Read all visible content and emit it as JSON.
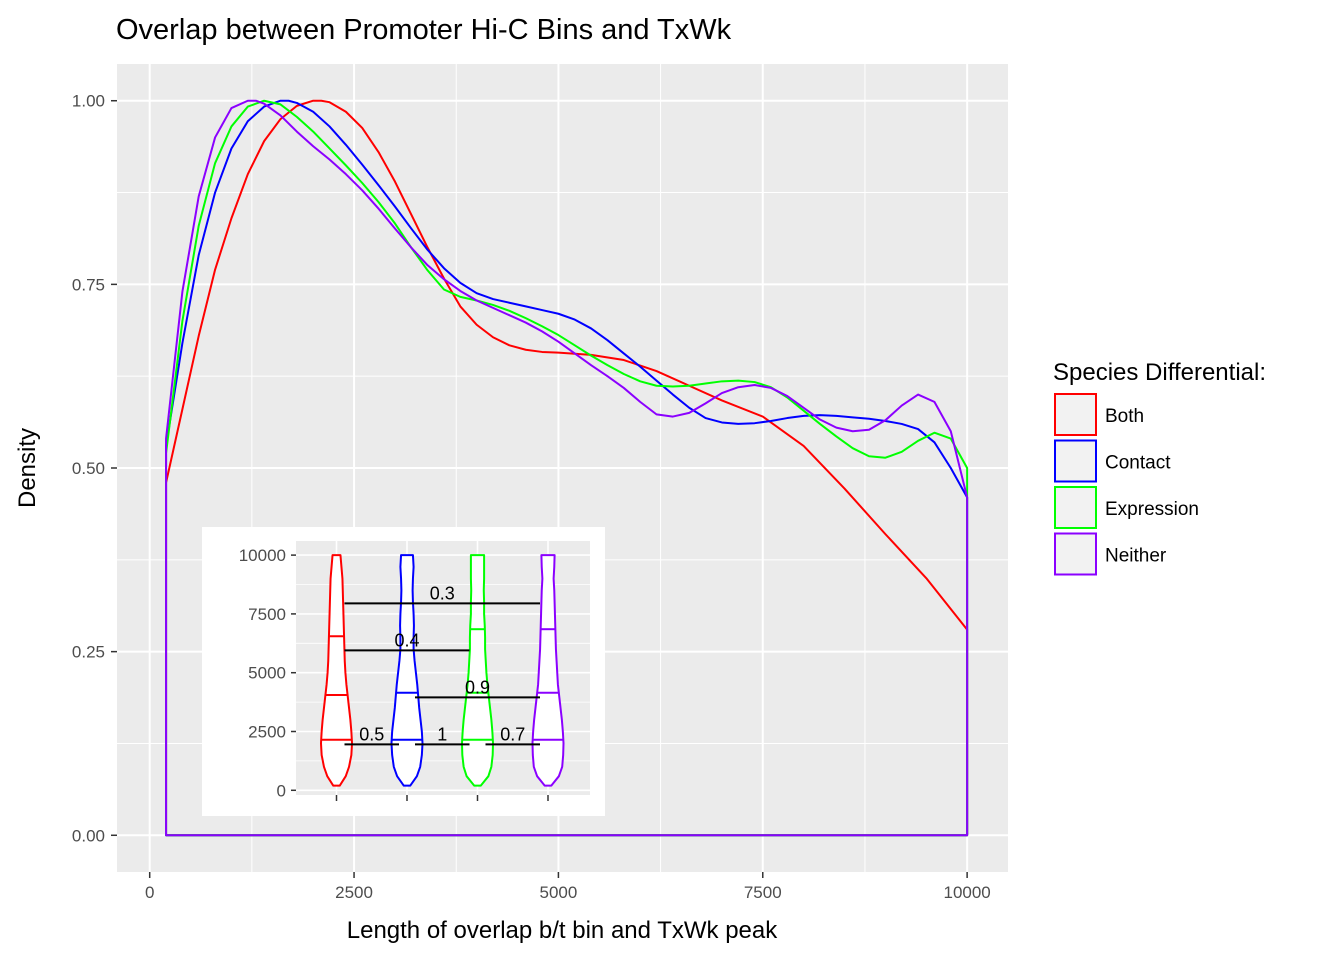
{
  "chart_data": [
    {
      "type": "area",
      "title": "Overlap between Promoter Hi-C Bins and TxWk",
      "xlabel": "Length of overlap b/t bin and TxWk peak",
      "ylabel": "Density",
      "xlim": [
        -400,
        10500
      ],
      "ylim": [
        -0.05,
        1.05
      ],
      "x_ticks": [
        0,
        2500,
        5000,
        7500,
        10000
      ],
      "y_ticks": [
        0.0,
        0.25,
        0.5,
        0.75,
        1.0
      ],
      "x_tick_labels": [
        "0",
        "2500",
        "5000",
        "7500",
        "10000"
      ],
      "y_tick_labels": [
        "0.00",
        "0.25",
        "0.50",
        "0.75",
        "1.00"
      ],
      "grid": true,
      "legend": {
        "title": "Species Differential:",
        "position": "right"
      },
      "series": [
        {
          "name": "Both",
          "color": "#ff0000",
          "x": [
            200,
            400,
            600,
            800,
            1000,
            1200,
            1400,
            1600,
            1800,
            2000,
            2100,
            2200,
            2400,
            2600,
            2800,
            3000,
            3200,
            3400,
            3600,
            3800,
            4000,
            4200,
            4400,
            4600,
            4800,
            5000,
            5400,
            5800,
            6200,
            6600,
            7000,
            7500,
            8000,
            8500,
            9000,
            9500,
            10000
          ],
          "y": [
            0.48,
            0.58,
            0.68,
            0.77,
            0.84,
            0.9,
            0.945,
            0.975,
            0.993,
            1.0,
            1.0,
            0.998,
            0.985,
            0.963,
            0.93,
            0.89,
            0.845,
            0.8,
            0.758,
            0.72,
            0.695,
            0.678,
            0.667,
            0.661,
            0.658,
            0.657,
            0.654,
            0.647,
            0.632,
            0.612,
            0.592,
            0.57,
            0.53,
            0.472,
            0.41,
            0.35,
            0.28
          ]
        },
        {
          "name": "Contact",
          "color": "#0000ff",
          "x": [
            200,
            400,
            600,
            800,
            1000,
            1200,
            1400,
            1600,
            1700,
            1800,
            2000,
            2200,
            2400,
            2600,
            2800,
            3000,
            3200,
            3400,
            3600,
            3800,
            4000,
            4200,
            4400,
            4600,
            4800,
            5000,
            5200,
            5400,
            5600,
            5800,
            6000,
            6200,
            6400,
            6600,
            6800,
            7000,
            7200,
            7400,
            7600,
            7800,
            8000,
            8200,
            8400,
            8600,
            8800,
            9000,
            9200,
            9400,
            9600,
            9800,
            10000
          ],
          "y": [
            0.53,
            0.67,
            0.79,
            0.875,
            0.935,
            0.972,
            0.992,
            1.0,
            1.0,
            0.997,
            0.985,
            0.965,
            0.94,
            0.913,
            0.885,
            0.856,
            0.826,
            0.797,
            0.772,
            0.752,
            0.738,
            0.73,
            0.725,
            0.72,
            0.715,
            0.71,
            0.702,
            0.69,
            0.674,
            0.656,
            0.638,
            0.619,
            0.6,
            0.582,
            0.568,
            0.562,
            0.56,
            0.561,
            0.564,
            0.568,
            0.571,
            0.572,
            0.571,
            0.569,
            0.567,
            0.564,
            0.56,
            0.553,
            0.535,
            0.5,
            0.46
          ]
        },
        {
          "name": "Expression",
          "color": "#00ff00",
          "x": [
            200,
            400,
            600,
            800,
            1000,
            1200,
            1400,
            1600,
            1800,
            2000,
            2200,
            2400,
            2600,
            2800,
            3000,
            3200,
            3400,
            3600,
            3800,
            4000,
            4200,
            4400,
            4600,
            4800,
            5000,
            5200,
            5400,
            5600,
            5800,
            6000,
            6200,
            6400,
            6600,
            6800,
            7000,
            7200,
            7400,
            7600,
            7800,
            8000,
            8200,
            8400,
            8600,
            8800,
            9000,
            9200,
            9400,
            9600,
            9800,
            10000
          ],
          "y": [
            0.52,
            0.7,
            0.83,
            0.915,
            0.965,
            0.992,
            1.0,
            0.995,
            0.978,
            0.958,
            0.935,
            0.912,
            0.888,
            0.862,
            0.833,
            0.8,
            0.769,
            0.743,
            0.733,
            0.728,
            0.722,
            0.714,
            0.704,
            0.693,
            0.681,
            0.667,
            0.653,
            0.64,
            0.628,
            0.618,
            0.612,
            0.611,
            0.612,
            0.615,
            0.618,
            0.619,
            0.617,
            0.61,
            0.596,
            0.578,
            0.56,
            0.543,
            0.527,
            0.516,
            0.514,
            0.522,
            0.537,
            0.548,
            0.54,
            0.5
          ]
        },
        {
          "name": "Neither",
          "color": "#8b00ff",
          "x": [
            200,
            400,
            600,
            800,
            1000,
            1200,
            1300,
            1400,
            1600,
            1800,
            2000,
            2200,
            2400,
            2600,
            2800,
            3000,
            3200,
            3400,
            3600,
            3800,
            4000,
            4200,
            4400,
            4600,
            4800,
            5000,
            5200,
            5400,
            5600,
            5800,
            6000,
            6200,
            6400,
            6600,
            6800,
            7000,
            7200,
            7400,
            7600,
            7800,
            8000,
            8200,
            8400,
            8600,
            8800,
            9000,
            9200,
            9400,
            9600,
            9800,
            10000
          ],
          "y": [
            0.54,
            0.74,
            0.87,
            0.95,
            0.99,
            1.0,
            1.0,
            0.996,
            0.98,
            0.958,
            0.938,
            0.92,
            0.9,
            0.878,
            0.853,
            0.826,
            0.8,
            0.776,
            0.757,
            0.741,
            0.728,
            0.718,
            0.708,
            0.698,
            0.686,
            0.672,
            0.656,
            0.64,
            0.625,
            0.609,
            0.59,
            0.573,
            0.57,
            0.575,
            0.588,
            0.602,
            0.61,
            0.613,
            0.609,
            0.598,
            0.582,
            0.566,
            0.555,
            0.55,
            0.552,
            0.565,
            0.585,
            0.6,
            0.59,
            0.55,
            0.46
          ]
        }
      ]
    },
    {
      "type": "violin",
      "ylim": [
        -200,
        10600
      ],
      "y_ticks": [
        0,
        2500,
        5000,
        7500,
        10000
      ],
      "y_tick_labels": [
        "0",
        "2500",
        "5000",
        "7500",
        "10000"
      ],
      "grid": true,
      "series": [
        {
          "name": "Both",
          "color": "#ff0000",
          "quantiles": [
            2150,
            4050,
            6550
          ],
          "profile_y": [
            200,
            600,
            1000,
            1500,
            2000,
            2500,
            3000,
            3500,
            4000,
            4500,
            5000,
            5500,
            6000,
            6500,
            7000,
            7500,
            8000,
            8500,
            9000,
            9500,
            10000
          ],
          "profile_w": [
            0.1,
            0.28,
            0.38,
            0.45,
            0.47,
            0.45,
            0.42,
            0.38,
            0.34,
            0.3,
            0.27,
            0.25,
            0.24,
            0.23,
            0.22,
            0.21,
            0.2,
            0.19,
            0.18,
            0.15,
            0.12
          ]
        },
        {
          "name": "Contact",
          "color": "#0000ff",
          "quantiles": [
            2150,
            4150
          ],
          "profile_y": [
            200,
            600,
            1000,
            1500,
            2000,
            2500,
            3000,
            3500,
            4000,
            4500,
            5000,
            5500,
            6000,
            6500,
            7000,
            7500,
            8000,
            8500,
            9000,
            9500,
            10000
          ],
          "profile_w": [
            0.1,
            0.3,
            0.4,
            0.45,
            0.47,
            0.45,
            0.41,
            0.37,
            0.34,
            0.31,
            0.27,
            0.23,
            0.2,
            0.2,
            0.21,
            0.2,
            0.18,
            0.17,
            0.18,
            0.2,
            0.18
          ]
        },
        {
          "name": "Expression",
          "color": "#00ff00",
          "quantiles": [
            2150,
            4150,
            6850
          ],
          "profile_y": [
            200,
            600,
            1000,
            1500,
            2000,
            2500,
            3000,
            3500,
            4000,
            4500,
            5000,
            5500,
            6000,
            6500,
            7000,
            7500,
            8000,
            8500,
            9000,
            9500,
            10000
          ],
          "profile_w": [
            0.1,
            0.33,
            0.42,
            0.46,
            0.47,
            0.45,
            0.42,
            0.38,
            0.34,
            0.3,
            0.27,
            0.25,
            0.23,
            0.23,
            0.22,
            0.2,
            0.2,
            0.19,
            0.2,
            0.2,
            0.2
          ]
        },
        {
          "name": "Neither",
          "color": "#8b00ff",
          "quantiles": [
            2150,
            4150,
            6850
          ],
          "profile_y": [
            200,
            600,
            1000,
            1500,
            2000,
            2500,
            3000,
            3500,
            4000,
            4500,
            5000,
            5500,
            6000,
            6500,
            7000,
            7500,
            8000,
            8500,
            9000,
            9500,
            10000
          ],
          "profile_w": [
            0.1,
            0.33,
            0.43,
            0.46,
            0.47,
            0.45,
            0.42,
            0.38,
            0.34,
            0.3,
            0.28,
            0.26,
            0.24,
            0.23,
            0.22,
            0.21,
            0.2,
            0.19,
            0.17,
            0.19,
            0.2
          ]
        }
      ],
      "annotations": [
        {
          "text": "0.3",
          "y": 7950,
          "from_group": 1,
          "to_group": 4
        },
        {
          "text": "0.4",
          "y": 5950,
          "from_group": 1,
          "to_group": 3
        },
        {
          "text": "0.9",
          "y": 3950,
          "from_group": 2,
          "to_group": 4
        },
        {
          "text": "0.5",
          "y": 1950,
          "from_group": 1,
          "to_group": 2
        },
        {
          "text": "1",
          "y": 1950,
          "from_group": 2,
          "to_group": 3
        },
        {
          "text": "0.7",
          "y": 1950,
          "from_group": 3,
          "to_group": 4
        }
      ]
    }
  ]
}
